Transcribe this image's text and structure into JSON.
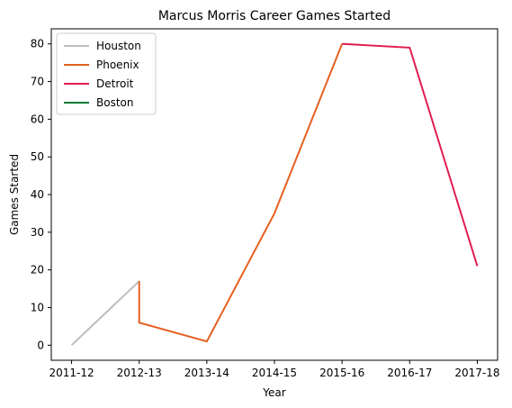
{
  "chart_data": {
    "type": "line",
    "title": "Marcus Morris  Career Games Started",
    "xlabel": "Year",
    "ylabel": "Games Started",
    "categories": [
      "2011-12",
      "2012-13",
      "2013-14",
      "2014-15",
      "2015-16",
      "2016-17",
      "2017-18"
    ],
    "ylim": [
      -4,
      84
    ],
    "yticks": [
      0,
      10,
      20,
      30,
      40,
      50,
      60,
      70,
      80
    ],
    "grid": false,
    "legend_position": "top-left",
    "series": [
      {
        "name": "Houston",
        "color": "#BEBEBE",
        "points": [
          [
            "2011-12",
            0
          ],
          [
            "2012-13",
            17
          ]
        ]
      },
      {
        "name": "Phoenix",
        "color": "#E56020",
        "points": [
          [
            "2012-13",
            17
          ],
          [
            "2012-13",
            6
          ],
          [
            "2013-14",
            1
          ],
          [
            "2014-15",
            35
          ],
          [
            "2015-16",
            80
          ]
        ]
      },
      {
        "name": "Detroit",
        "color": "#E01E50",
        "points": [
          [
            "2015-16",
            80
          ],
          [
            "2016-17",
            79
          ],
          [
            "2017-18",
            21
          ]
        ]
      },
      {
        "name": "Boston",
        "color": "#007A33",
        "points": []
      }
    ]
  }
}
